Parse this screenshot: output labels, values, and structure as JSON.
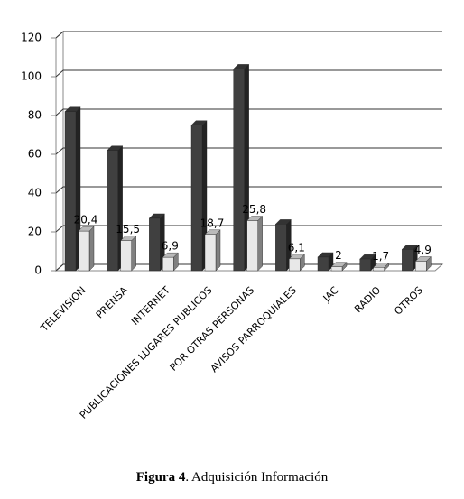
{
  "chart_data": {
    "type": "bar3d",
    "categories": [
      "TELEVISION",
      "PRENSA",
      "INTERNET",
      "PUBLICACIONES LUGARES PUBLICOS",
      "POR OTRAS PERSONAS",
      "AVISOS PARROQUIALES",
      "JAC",
      "RADIO",
      "OTROS"
    ],
    "series": [
      {
        "color": "#404040",
        "values": [
          82,
          62,
          27,
          75,
          104,
          24,
          7,
          6,
          11
        ]
      },
      {
        "color": "#e8e8e8",
        "values": [
          20.4,
          15.5,
          6.9,
          18.7,
          25.8,
          6.1,
          2,
          1.7,
          4.9
        ],
        "value_labels": [
          "20,4",
          "15,5",
          "6,9",
          "18,7",
          "25,8",
          "6,1",
          "2",
          "1,7",
          "4,9"
        ]
      }
    ],
    "ylim": [
      0,
      120
    ],
    "yticks": [
      0,
      20,
      40,
      60,
      80,
      100,
      120
    ],
    "grid": true,
    "caption": {
      "label": "Figura 4",
      "text": ". Adquisición Información"
    }
  }
}
